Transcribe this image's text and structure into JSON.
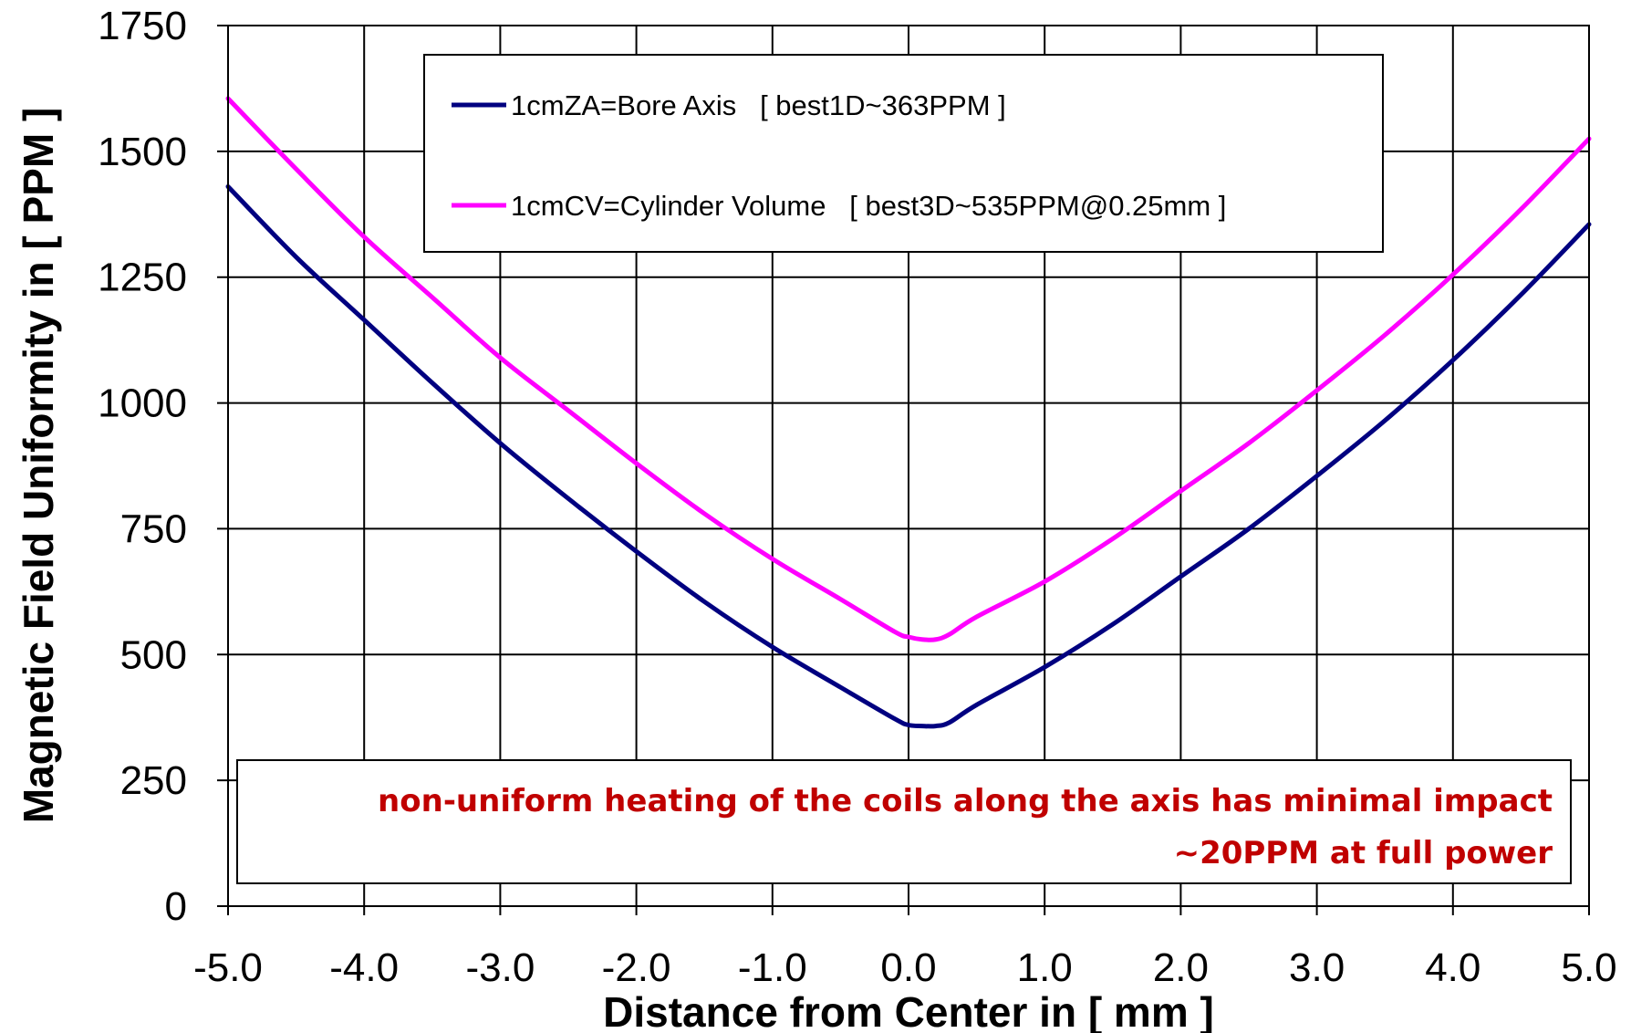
{
  "chart_data": {
    "type": "line",
    "title": "",
    "xlabel": "Distance from Center in [ mm ]",
    "ylabel": "Magnetic Field Uniformity in [ PPM ]",
    "xlim": [
      -5.0,
      5.0
    ],
    "ylim": [
      0,
      1750
    ],
    "x_ticks": [
      -5.0,
      -4.0,
      -3.0,
      -2.0,
      -1.0,
      0.0,
      1.0,
      2.0,
      3.0,
      4.0,
      5.0
    ],
    "x_tick_labels": [
      "-5.0",
      "-4.0",
      "-3.0",
      "-2.0",
      "-1.0",
      "0.0",
      "1.0",
      "2.0",
      "3.0",
      "4.0",
      "5.0"
    ],
    "y_ticks": [
      0,
      250,
      500,
      750,
      1000,
      1250,
      1500,
      1750
    ],
    "y_tick_labels": [
      "0",
      "250",
      "500",
      "750",
      "1000",
      "1250",
      "1500",
      "1750"
    ],
    "grid": true,
    "legend_position": "top-center",
    "series": [
      {
        "name": "1cmZA=Bore Axis   [ best1D~363PPM ]",
        "color": "#000080",
        "x": [
          -5.0,
          -4.5,
          -4.0,
          -3.5,
          -3.0,
          -2.5,
          -2.0,
          -1.5,
          -1.0,
          -0.5,
          -0.1,
          0.0,
          0.1,
          0.2,
          0.3,
          0.5,
          1.0,
          1.5,
          2.0,
          2.5,
          3.0,
          3.5,
          4.0,
          4.5,
          5.0
        ],
        "y": [
          1430,
          1290,
          1165,
          1040,
          920,
          810,
          705,
          605,
          515,
          435,
          372,
          360,
          358,
          358,
          365,
          400,
          475,
          560,
          655,
          750,
          855,
          965,
          1085,
          1215,
          1355
        ]
      },
      {
        "name": "1cmCV=Cylinder Volume   [ best3D~535PPM@0.25mm ]",
        "color": "#ff00ff",
        "x": [
          -5.0,
          -4.5,
          -4.0,
          -3.5,
          -3.0,
          -2.5,
          -2.0,
          -1.5,
          -1.0,
          -0.5,
          -0.1,
          0.0,
          0.1,
          0.2,
          0.3,
          0.5,
          1.0,
          1.5,
          2.0,
          2.5,
          3.0,
          3.5,
          4.0,
          4.5,
          5.0
        ],
        "y": [
          1605,
          1465,
          1330,
          1210,
          1090,
          985,
          880,
          780,
          690,
          610,
          545,
          535,
          530,
          530,
          540,
          575,
          645,
          730,
          825,
          920,
          1025,
          1135,
          1255,
          1385,
          1525
        ]
      }
    ],
    "annotation": {
      "lines": [
        "non-uniform heating of the coils along the axis has minimal impact",
        "~20PPM at full power"
      ],
      "color": "#c00000"
    }
  }
}
